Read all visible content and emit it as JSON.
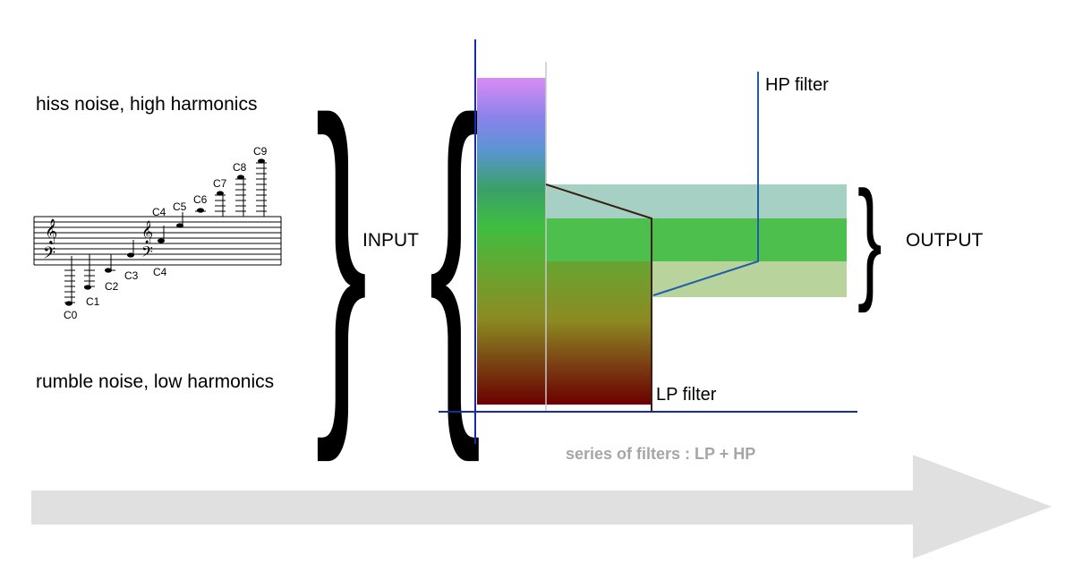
{
  "labels": {
    "hiss": "hiss noise, high harmonics",
    "rumble": "rumble noise, low harmonics",
    "input": "INPUT",
    "output": "OUTPUT",
    "hp_filter": "HP filter",
    "lp_filter": "LP filter",
    "caption": "series of filters : LP + HP"
  },
  "staff_notes": [
    "C0",
    "C1",
    "C2",
    "C3",
    "C4",
    "C4",
    "C5",
    "C6",
    "C7",
    "C8",
    "C9"
  ],
  "colors": {
    "axis": "#1a2aa0",
    "hp_line": "#1f5fa8",
    "lp_line": "#3a1f14",
    "caption": "#a6a6a6",
    "arrow": "#e0e0e0",
    "spectrum_top": "#d98cf5",
    "spectrum_bottom": "#6b0000",
    "output_top_band": "#a6d0c4",
    "output_mid_band": "#4cbf4c",
    "output_low_band": "#b8d39c"
  }
}
